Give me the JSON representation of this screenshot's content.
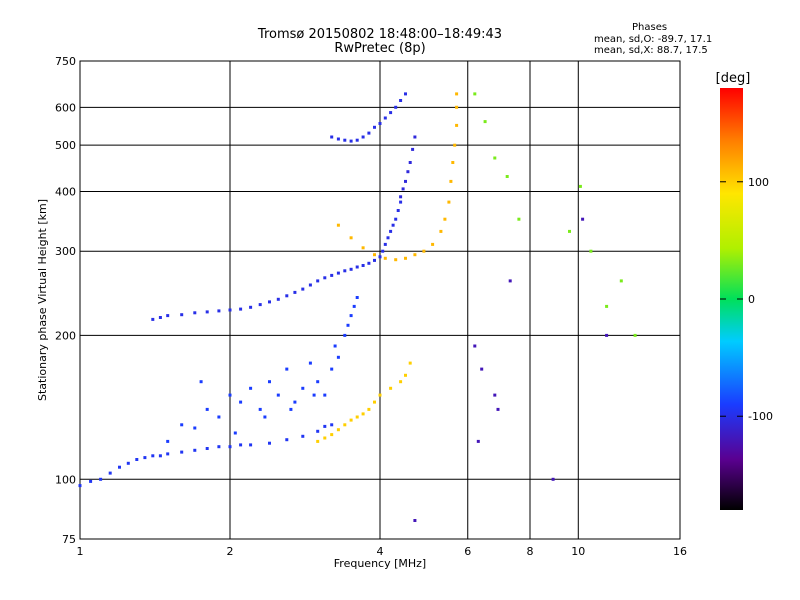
{
  "chart_data": {
    "type": "scatter",
    "title": "Tromsø 20150802 18:48:00–18:49:43",
    "subtitle": "RwPretec (8p)",
    "xlabel": "Frequency [MHz]",
    "ylabel": "Stationary phase Virtual Height [km]",
    "xscale": "log",
    "yscale": "log",
    "xlim": [
      1,
      16
    ],
    "ylim": [
      75,
      750
    ],
    "xticks": [
      1,
      2,
      4,
      6,
      8,
      10,
      16
    ],
    "yticks": [
      75,
      100,
      200,
      300,
      400,
      500,
      600,
      750
    ],
    "grid": true,
    "phase_stats": {
      "heading": "Phases",
      "line_o": "mean, sd,O: -89.7, 17.1",
      "line_x": "mean, sd,X: 88.7, 17.5"
    },
    "colorbar": {
      "label": "[deg]",
      "range": [
        -180,
        180
      ],
      "ticks": [
        100,
        0,
        -100
      ]
    },
    "series": [
      {
        "name": "",
        "phase": -95,
        "x": [
          1.0,
          1.05,
          1.1,
          1.15,
          1.2,
          1.25,
          1.3,
          1.35,
          1.4,
          1.45,
          1.5,
          1.6,
          1.7,
          1.8,
          1.9,
          2.0,
          2.1,
          2.2,
          2.4,
          2.6,
          2.8,
          3.0,
          3.1,
          3.2
        ],
        "y": [
          97,
          99,
          100,
          103,
          106,
          108,
          110,
          111,
          112,
          112,
          113,
          114,
          115,
          116,
          117,
          117,
          118,
          118,
          119,
          121,
          123,
          126,
          129,
          130
        ]
      },
      {
        "name": "",
        "phase": -100,
        "x": [
          1.4,
          1.45,
          1.5,
          1.6,
          1.7,
          1.8,
          1.9,
          2.0,
          2.1,
          2.2,
          2.3,
          2.4,
          2.5,
          2.6,
          2.7,
          2.8,
          2.9,
          3.0,
          3.1,
          3.2,
          3.3,
          3.4,
          3.5,
          3.6,
          3.7,
          3.8,
          3.9,
          4.0,
          4.05,
          4.1,
          4.15,
          4.2,
          4.25,
          4.3,
          4.35,
          4.4
        ],
        "y": [
          216,
          218,
          220,
          221,
          223,
          224,
          225,
          226,
          227,
          229,
          232,
          235,
          238,
          242,
          246,
          250,
          255,
          260,
          264,
          267,
          270,
          273,
          275,
          278,
          280,
          283,
          287,
          292,
          300,
          310,
          320,
          330,
          340,
          350,
          365,
          380
        ]
      },
      {
        "name": "",
        "phase": -105,
        "x": [
          4.4,
          4.45,
          4.5,
          4.55,
          4.6,
          4.65,
          4.7
        ],
        "y": [
          390,
          405,
          420,
          440,
          460,
          490,
          520
        ]
      },
      {
        "name": "",
        "phase": -100,
        "x": [
          3.2,
          3.3,
          3.4,
          3.5,
          3.6,
          3.7,
          3.8,
          3.9,
          4.0,
          4.1,
          4.2,
          4.3,
          4.4,
          4.5
        ],
        "y": [
          520,
          515,
          512,
          510,
          512,
          520,
          530,
          545,
          555,
          570,
          585,
          600,
          620,
          640
        ]
      },
      {
        "name": "",
        "phase": -90,
        "x": [
          1.6,
          1.7,
          1.8,
          1.9,
          2.0,
          2.1,
          2.2,
          2.3,
          2.4,
          2.5,
          2.6,
          2.7,
          2.8,
          2.9,
          3.0,
          3.1,
          3.2,
          3.3,
          3.4,
          3.5,
          3.6,
          1.5,
          1.75,
          2.05,
          2.35,
          2.65,
          2.95,
          3.25,
          3.45,
          3.55
        ],
        "y": [
          130,
          128,
          140,
          135,
          150,
          145,
          155,
          140,
          160,
          150,
          170,
          145,
          155,
          175,
          160,
          150,
          170,
          180,
          200,
          220,
          240,
          120,
          160,
          125,
          135,
          140,
          150,
          190,
          210,
          230
        ]
      },
      {
        "name": "",
        "phase": 100,
        "x": [
          3.0,
          3.1,
          3.2,
          3.3,
          3.4,
          3.5,
          3.6,
          3.7,
          3.8,
          3.9,
          4.0,
          4.2,
          4.4,
          4.5,
          4.6
        ],
        "y": [
          120,
          122,
          124,
          127,
          130,
          133,
          135,
          137,
          140,
          145,
          150,
          155,
          160,
          165,
          175
        ]
      },
      {
        "name": "",
        "phase": 110,
        "x": [
          3.3,
          3.5,
          3.7,
          3.9,
          4.1,
          4.3,
          4.5,
          4.7,
          4.9,
          5.1,
          5.3,
          5.4,
          5.5,
          5.55,
          5.6,
          5.65,
          5.7,
          5.7,
          5.7
        ],
        "y": [
          340,
          320,
          305,
          295,
          290,
          288,
          290,
          295,
          300,
          310,
          330,
          350,
          380,
          420,
          460,
          500,
          550,
          600,
          640
        ]
      },
      {
        "name": "",
        "phase": 30,
        "x": [
          6.2,
          6.5,
          6.8,
          7.2,
          7.6,
          9.6,
          10.1,
          10.6,
          11.4,
          12.2,
          13.0
        ],
        "y": [
          640,
          560,
          470,
          430,
          350,
          330,
          410,
          300,
          230,
          260,
          200
        ]
      },
      {
        "name": "",
        "phase": -120,
        "x": [
          6.2,
          6.4,
          6.9,
          7.3,
          8.9,
          10.2,
          11.4,
          6.3,
          6.8,
          4.7
        ],
        "y": [
          190,
          170,
          140,
          260,
          100,
          350,
          200,
          120,
          150,
          82
        ]
      }
    ]
  }
}
